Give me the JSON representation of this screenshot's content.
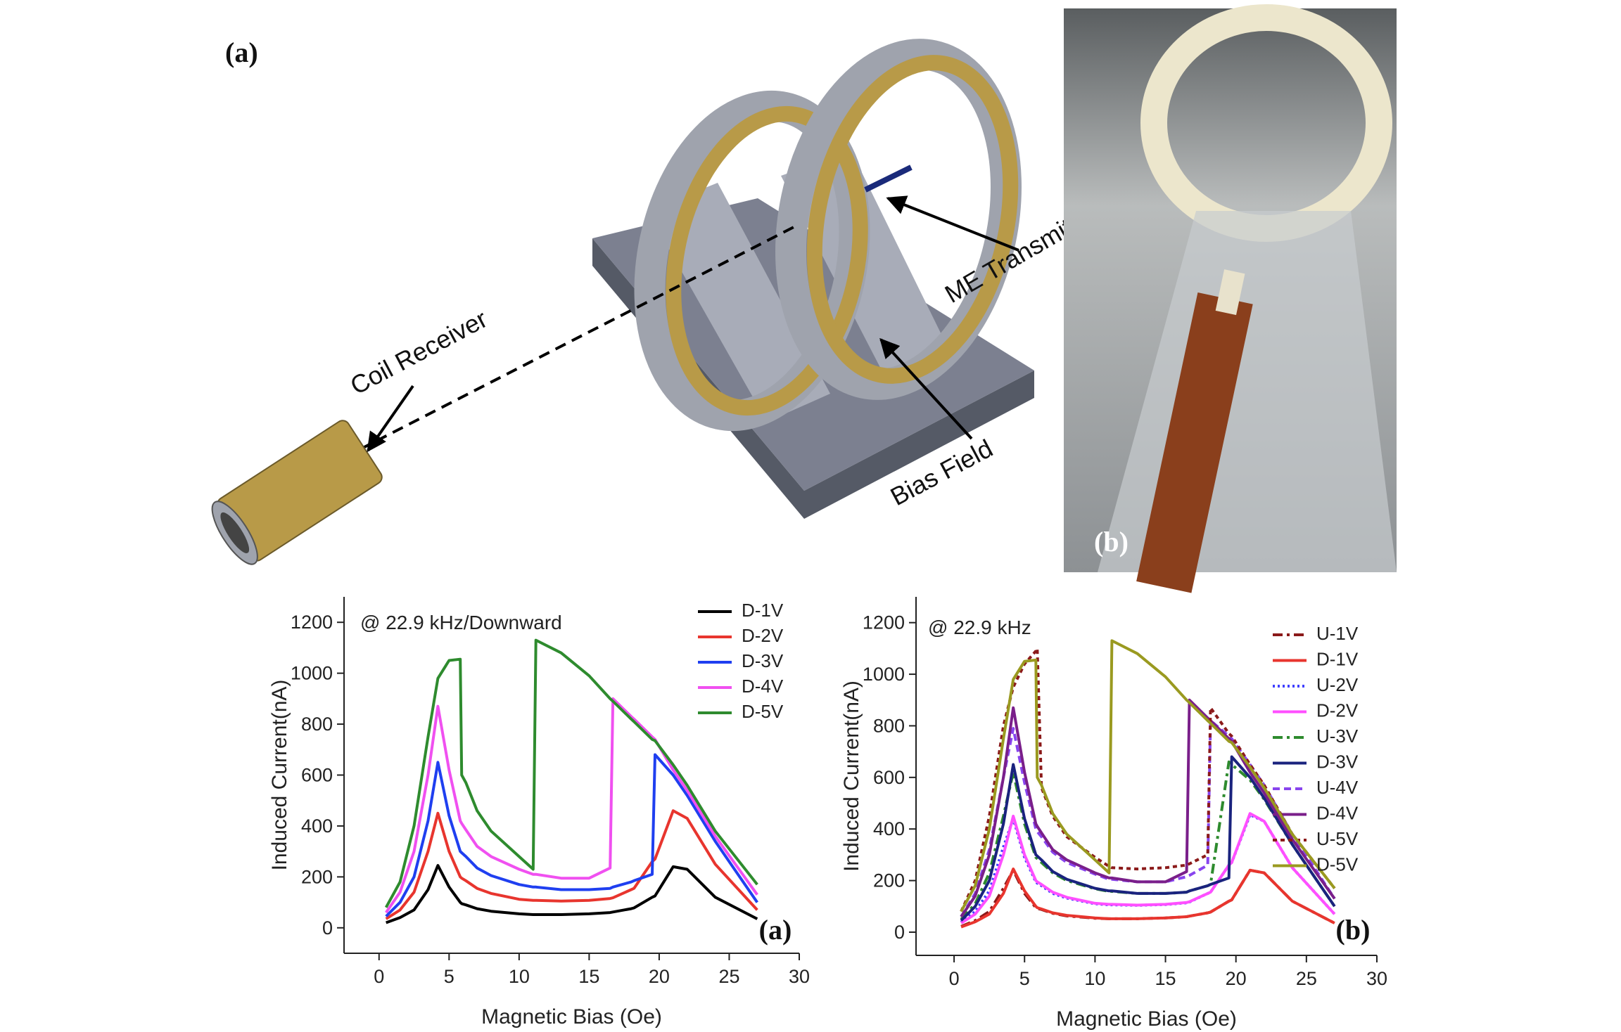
{
  "illustration": {
    "label": "(a)",
    "annotations": [
      "Coil Receiver",
      "ME Transmitter",
      "Bias Field"
    ]
  },
  "photo": {
    "label": "(b)"
  },
  "chart_data": [
    {
      "type": "line",
      "panel_label": "(a)",
      "annotation": "@ 22.9 kHz/Downward",
      "xlabel": "Magnetic Bias (Oe)",
      "ylabel": "Induced Current(nA)",
      "xlim": [
        -2.5,
        30
      ],
      "ylim": [
        -100,
        1300
      ],
      "xticks": [
        0,
        5,
        10,
        15,
        20,
        25,
        30
      ],
      "yticks": [
        0,
        200,
        400,
        600,
        800,
        1000,
        1200
      ],
      "x": [
        0.5,
        1.5,
        2.5,
        3.5,
        4.2,
        5,
        5.8,
        5.9,
        6.2,
        7,
        8,
        10,
        11,
        11.2,
        13,
        15,
        16.5,
        16.7,
        18,
        18.2,
        19.5,
        19.7,
        21,
        22,
        24,
        27
      ],
      "series": [
        {
          "name": "D-1V",
          "color": "#000000",
          "dash": "solid",
          "values": [
            20,
            40,
            70,
            150,
            245,
            160,
            100,
            95,
            90,
            75,
            65,
            55,
            52,
            52,
            52,
            55,
            60,
            62,
            75,
            78,
            120,
            125,
            240,
            230,
            120,
            35
          ]
        },
        {
          "name": "D-2V",
          "color": "#e8352e",
          "dash": "solid",
          "values": [
            35,
            70,
            140,
            300,
            450,
            300,
            200,
            195,
            185,
            155,
            135,
            112,
            108,
            108,
            105,
            108,
            115,
            118,
            150,
            155,
            260,
            270,
            460,
            430,
            250,
            70
          ]
        },
        {
          "name": "D-3V",
          "color": "#1f3ff0",
          "dash": "solid",
          "values": [
            45,
            100,
            200,
            420,
            650,
            440,
            300,
            295,
            280,
            235,
            205,
            170,
            160,
            160,
            150,
            150,
            155,
            160,
            180,
            185,
            210,
            680,
            600,
            520,
            340,
            100
          ]
        },
        {
          "name": "D-4V",
          "color": "#f050f0",
          "dash": "solid",
          "values": [
            60,
            140,
            300,
            600,
            870,
            620,
            420,
            410,
            385,
            320,
            280,
            230,
            210,
            210,
            195,
            195,
            235,
            900,
            830,
            820,
            750,
            740,
            620,
            540,
            360,
            130
          ]
        },
        {
          "name": "D-5V",
          "color": "#2e8b2e",
          "dash": "solid",
          "values": [
            80,
            180,
            400,
            750,
            980,
            1050,
            1055,
            600,
            570,
            460,
            380,
            280,
            230,
            1130,
            1080,
            990,
            900,
            890,
            820,
            810,
            740,
            735,
            640,
            560,
            380,
            170
          ]
        }
      ]
    },
    {
      "type": "line",
      "panel_label": "(b)",
      "annotation": "@ 22.9 kHz",
      "xlabel": "Magnetic Bias (Oe)",
      "ylabel": "Induced Current(nA)",
      "xlim": [
        -2.7,
        30
      ],
      "ylim": [
        -90,
        1300
      ],
      "xticks": [
        0,
        5,
        10,
        15,
        20,
        25,
        30
      ],
      "yticks": [
        0,
        200,
        400,
        600,
        800,
        1000,
        1200
      ],
      "x": [
        0.5,
        1.5,
        2.5,
        3.5,
        4.2,
        5,
        5.8,
        5.9,
        6.2,
        7,
        8,
        10,
        11,
        11.2,
        13,
        15,
        16.5,
        16.7,
        18,
        18.2,
        19.5,
        19.7,
        21,
        22,
        24,
        27
      ],
      "series": [
        {
          "name": "U-1V",
          "color": "#8b1a1a",
          "dash": "dashdot",
          "values": [
            22,
            45,
            80,
            170,
            240,
            150,
            95,
            92,
            88,
            73,
            63,
            54,
            52,
            52,
            52,
            55,
            60,
            62,
            75,
            78,
            120,
            125,
            240,
            230,
            120,
            35
          ]
        },
        {
          "name": "D-1V",
          "color": "#e8352e",
          "dash": "solid",
          "values": [
            20,
            40,
            70,
            150,
            245,
            160,
            100,
            95,
            90,
            75,
            65,
            55,
            52,
            52,
            52,
            55,
            60,
            62,
            75,
            78,
            120,
            125,
            240,
            230,
            120,
            35
          ]
        },
        {
          "name": "U-2V",
          "color": "#4040ff",
          "dash": "dotted",
          "values": [
            38,
            80,
            160,
            330,
            440,
            290,
            195,
            190,
            180,
            150,
            132,
            110,
            106,
            106,
            104,
            107,
            114,
            117,
            150,
            155,
            260,
            270,
            455,
            430,
            250,
            70
          ]
        },
        {
          "name": "D-2V",
          "color": "#ff4fff",
          "dash": "solid",
          "values": [
            35,
            70,
            140,
            300,
            450,
            300,
            200,
            195,
            185,
            155,
            135,
            112,
            108,
            108,
            105,
            108,
            115,
            118,
            150,
            155,
            260,
            270,
            460,
            430,
            250,
            70
          ]
        },
        {
          "name": "U-3V",
          "color": "#2e8b2e",
          "dash": "dashdot",
          "values": [
            50,
            110,
            230,
            450,
            620,
            420,
            290,
            285,
            270,
            230,
            200,
            168,
            158,
            158,
            150,
            150,
            155,
            160,
            180,
            185,
            660,
            650,
            590,
            515,
            340,
            100
          ]
        },
        {
          "name": "D-3V",
          "color": "#1a237e",
          "dash": "solid",
          "values": [
            45,
            100,
            200,
            420,
            650,
            440,
            300,
            295,
            280,
            235,
            205,
            170,
            160,
            160,
            150,
            150,
            155,
            160,
            180,
            185,
            210,
            680,
            600,
            520,
            340,
            100
          ]
        },
        {
          "name": "U-4V",
          "color": "#8844ee",
          "dash": "dashed",
          "values": [
            60,
            150,
            320,
            600,
            790,
            580,
            400,
            390,
            370,
            310,
            270,
            225,
            205,
            205,
            195,
            195,
            215,
            220,
            260,
            820,
            760,
            750,
            650,
            570,
            380,
            130
          ]
        },
        {
          "name": "D-4V",
          "color": "#7a1f8a",
          "dash": "solid",
          "values": [
            60,
            140,
            300,
            600,
            870,
            620,
            420,
            410,
            385,
            320,
            280,
            230,
            210,
            210,
            195,
            195,
            235,
            900,
            830,
            820,
            750,
            740,
            620,
            540,
            360,
            130
          ]
        },
        {
          "name": "U-5V",
          "color": "#8b1a1a",
          "dash": "shortdash",
          "values": [
            80,
            200,
            450,
            800,
            950,
            1040,
            1090,
            1100,
            560,
            450,
            370,
            290,
            255,
            250,
            245,
            250,
            260,
            265,
            300,
            870,
            770,
            760,
            650,
            570,
            380,
            170
          ]
        },
        {
          "name": "D-5V",
          "color": "#9a9a20",
          "dash": "solid",
          "values": [
            80,
            180,
            400,
            750,
            980,
            1050,
            1055,
            600,
            570,
            460,
            380,
            280,
            230,
            1130,
            1080,
            990,
            900,
            890,
            820,
            810,
            740,
            735,
            640,
            560,
            380,
            170
          ]
        }
      ]
    }
  ]
}
